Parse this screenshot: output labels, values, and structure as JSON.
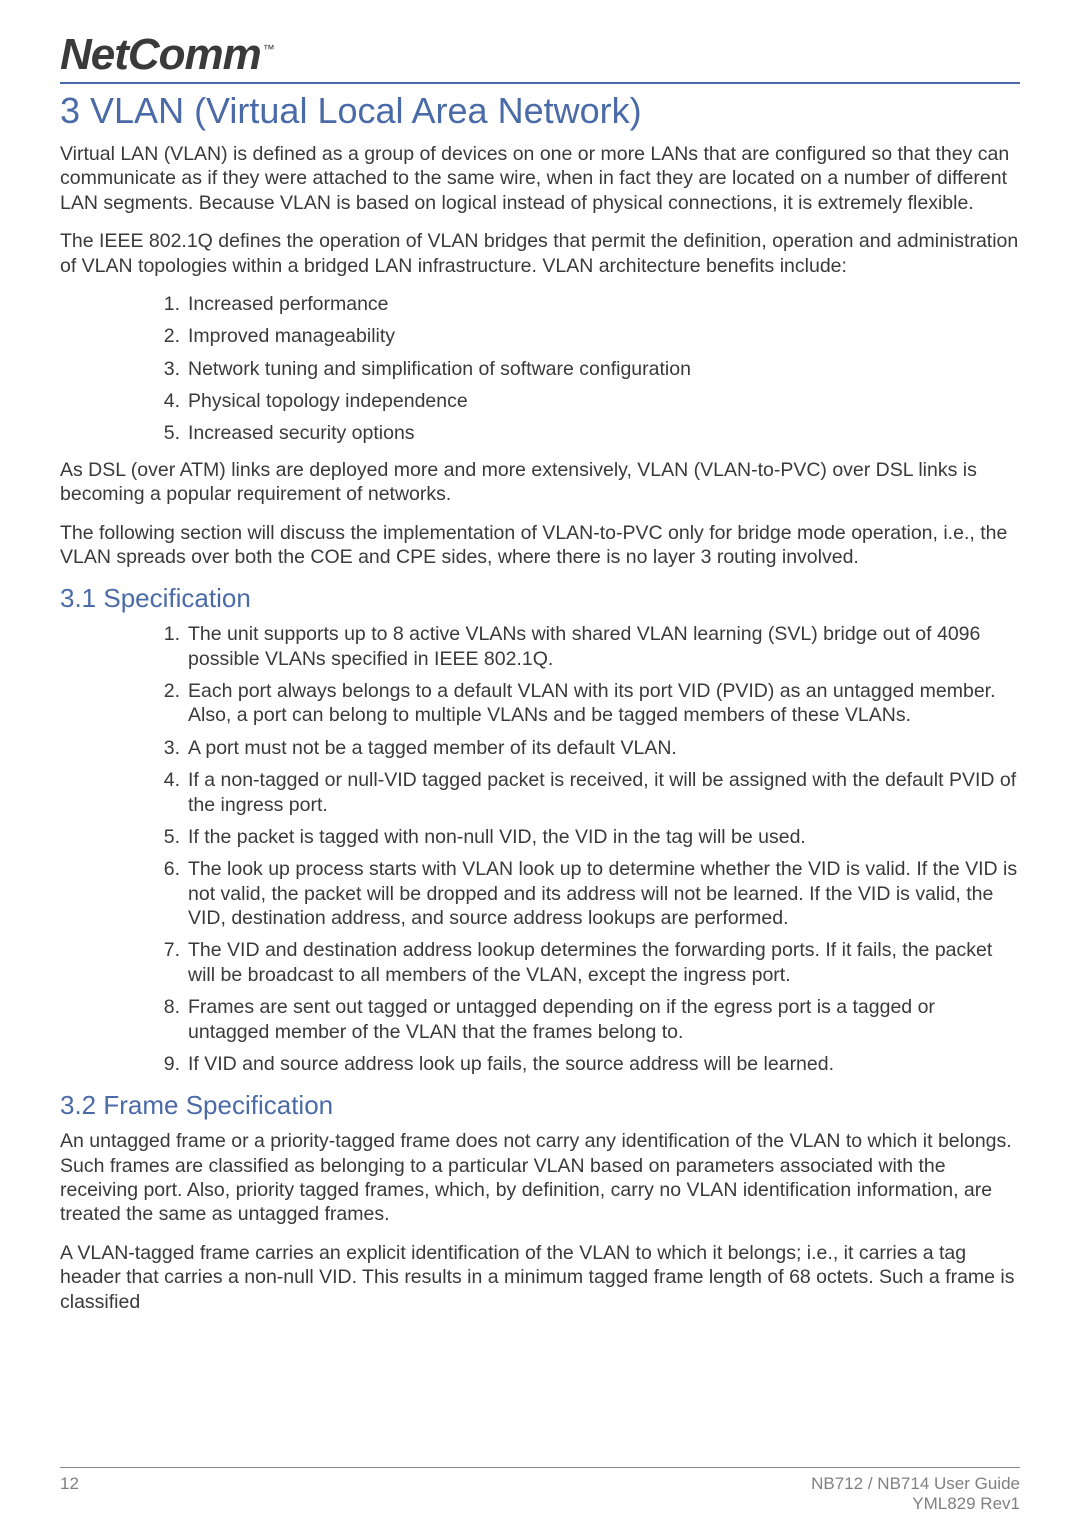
{
  "logo": {
    "text": "NetComm",
    "tm": "™"
  },
  "title": "3 VLAN (Virtual Local Area Network)",
  "intro_p1": "Virtual LAN (VLAN) is defined as a group of devices on one or more LANs that are configured so that they can communicate as if they were attached to the same wire, when in fact they are located on a number of different LAN segments. Because VLAN is based on logical instead of physical connections, it is extremely flexible.",
  "intro_p2": "The IEEE 802.1Q defines the operation of VLAN bridges that permit the definition, operation and administration of VLAN topologies within a bridged LAN infrastructure. VLAN architecture benefits include:",
  "benefits": [
    "Increased performance",
    "Improved manageability",
    "Network tuning and simplification of software configuration",
    "Physical topology independence",
    "Increased security options"
  ],
  "intro_p3": "As DSL (over ATM) links are deployed more and more extensively, VLAN (VLAN-to-PVC) over DSL links is becoming a popular requirement of networks.",
  "intro_p4": "The following section will discuss the implementation of VLAN-to-PVC only for bridge mode operation, i.e., the VLAN spreads over both the COE and CPE sides, where there is no layer 3 routing involved.",
  "sec31_title": "3.1 Specification",
  "spec_items": [
    "The unit supports up to 8 active VLANs with shared VLAN learning (SVL) bridge out of 4096 possible VLANs specified in IEEE 802.1Q.",
    "Each port always belongs to a default VLAN with its port VID (PVID) as an untagged member. Also, a port can belong to multiple VLANs and be tagged members of these VLANs.",
    "A port must not be a tagged member of its default VLAN.",
    "If a non-tagged or null-VID tagged packet is received, it will be assigned with the default PVID of the ingress port.",
    "If the packet is tagged with non-null VID, the VID in the tag will be used.",
    "The look up process starts with VLAN look up to determine whether the VID is valid. If the VID is not valid, the packet will be dropped and its address will not be learned. If the VID is valid, the VID, destination address, and source address lookups are performed.",
    "The VID and destination address lookup determines the forwarding ports. If it fails, the packet will be broadcast to all members of the VLAN, except the ingress port.",
    "Frames are sent out tagged or untagged depending on if the egress port is a tagged or untagged member of the VLAN that the frames belong to.",
    "If VID and source address look up fails, the source address will be learned."
  ],
  "sec32_title": "3.2 Frame Specification",
  "frame_p1": "An untagged frame or a priority-tagged frame does not carry any identification of the VLAN to which it belongs. Such frames are classified as belonging to a particular VLAN based on parameters associated with the receiving port. Also, priority tagged frames, which, by definition, carry no VLAN identification information, are treated the same as untagged frames.",
  "frame_p2": "A VLAN-tagged frame carries an explicit identification of the VLAN to which it belongs; i.e., it carries a tag header that carries a non-null VID. This results in a minimum tagged frame length of 68 octets. Such a frame is classified",
  "footer": {
    "page": "12",
    "guide": "NB712 / NB714 User Guide",
    "rev": "YML829 Rev1"
  },
  "colors": {
    "heading": "#4a6aa8",
    "body": "#3a3a3a",
    "footer": "#808080",
    "rule": "#4a6aa8"
  }
}
